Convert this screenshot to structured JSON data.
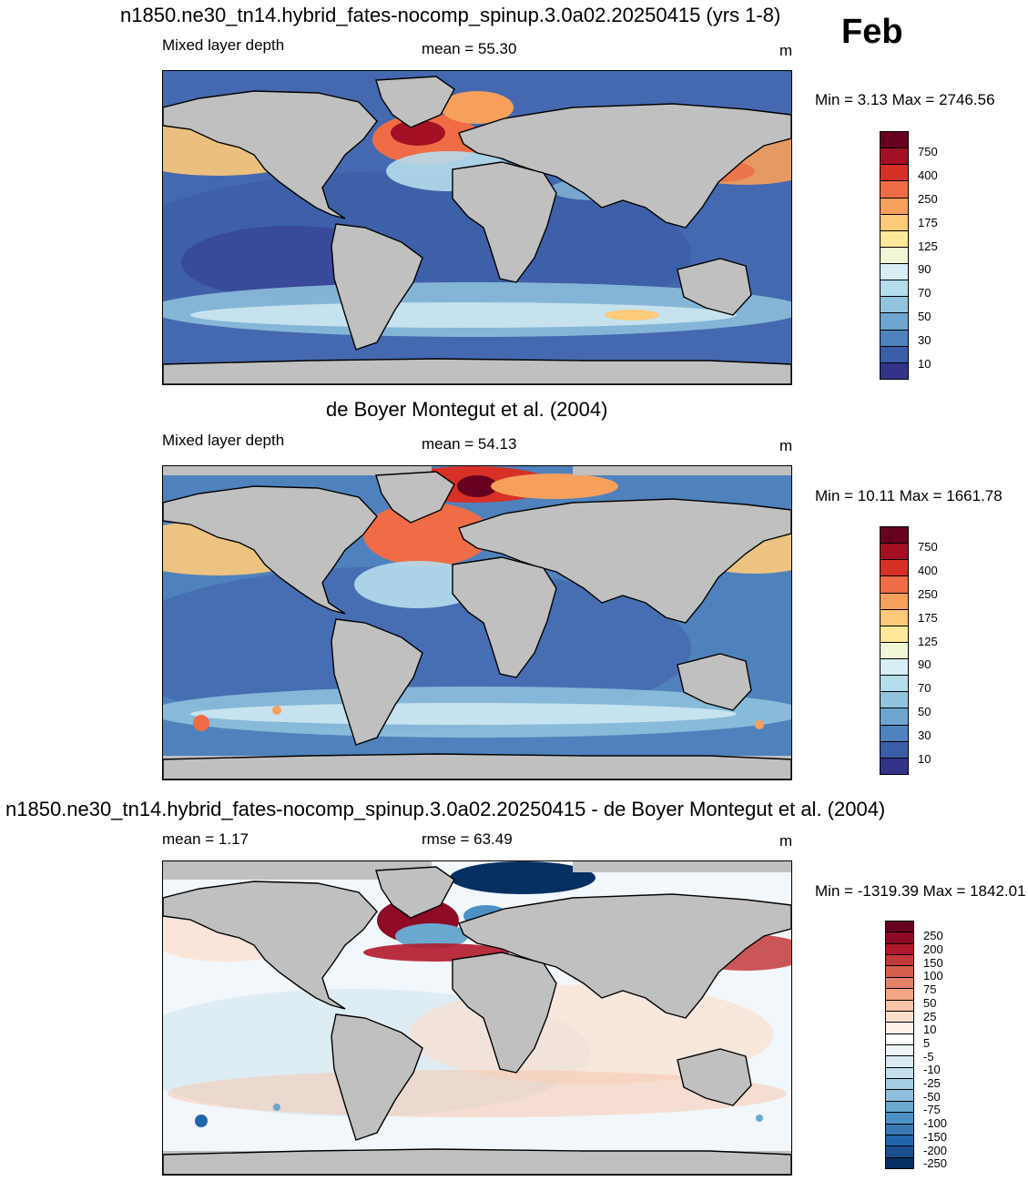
{
  "month": "Feb",
  "panels": [
    {
      "title": "n1850.ne30_tn14.hybrid_fates-nocomp_spinup.3.0a02.20250415 (yrs 1-8)",
      "left_label": "Mixed layer depth",
      "center_label": "mean =  55.30",
      "units": "m",
      "minmax": "Min =   3.13 Max = 2746.56",
      "colorbar": {
        "labels": [
          "750",
          "400",
          "250",
          "175",
          "125",
          "90",
          "70",
          "50",
          "30",
          "10"
        ],
        "colors": [
          "#67001f",
          "#a50f23",
          "#d73027",
          "#ef6c46",
          "#f6a05c",
          "#fdca79",
          "#fee99a",
          "#f1f7d6",
          "#d6eef5",
          "#b6ddec",
          "#92c4de",
          "#6ea6cf",
          "#4f82bd",
          "#3c5ea6",
          "#323389"
        ]
      }
    },
    {
      "title": "de Boyer Montegut et al. (2004)",
      "left_label": "Mixed layer depth",
      "center_label": "mean =  54.13",
      "units": "m",
      "minmax": "Min =  10.11 Max = 1661.78",
      "colorbar": {
        "labels": [
          "750",
          "400",
          "250",
          "175",
          "125",
          "90",
          "70",
          "50",
          "30",
          "10"
        ],
        "colors": [
          "#67001f",
          "#a50f23",
          "#d73027",
          "#ef6c46",
          "#f6a05c",
          "#fdca79",
          "#fee99a",
          "#f1f7d6",
          "#d6eef5",
          "#b6ddec",
          "#92c4de",
          "#6ea6cf",
          "#4f82bd",
          "#3c5ea6",
          "#323389"
        ]
      }
    },
    {
      "title": "n1850.ne30_tn14.hybrid_fates-nocomp_spinup.3.0a02.20250415 - de Boyer Montegut et al. (2004)",
      "left_label": "mean =   1.17",
      "center_label": "rmse =  63.49",
      "units": "m",
      "minmax": "Min = -1319.39 Max = 1842.01",
      "colorbar": {
        "labels": [
          "250",
          "200",
          "150",
          "100",
          "75",
          "50",
          "25",
          "10",
          "5",
          "-5",
          "-10",
          "-25",
          "-50",
          "-75",
          "-100",
          "-150",
          "-200",
          "-250"
        ],
        "colors": [
          "#67001f",
          "#8e0a25",
          "#b2182b",
          "#c43a3a",
          "#d6604d",
          "#e58267",
          "#f4a582",
          "#f8c4a8",
          "#fbe0cf",
          "#fdf1ea",
          "#ffffff",
          "#eef5fa",
          "#dbeaf3",
          "#c3deed",
          "#a6cfe4",
          "#8ebfdc",
          "#6aa8d0",
          "#4d91c4",
          "#3a78b3",
          "#2166ac",
          "#1a4f8f",
          "#053061"
        ]
      }
    }
  ]
}
